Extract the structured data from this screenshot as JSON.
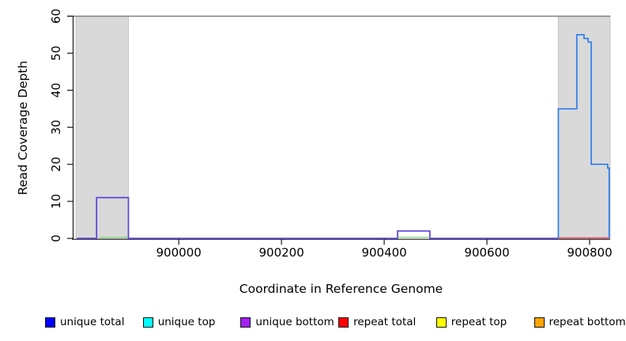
{
  "figure": {
    "xlabel": "Coordinate in Reference Genome",
    "ylabel": "Read Coverage Depth"
  },
  "legend": {
    "items": [
      {
        "label": "unique total",
        "color": "#0000ff"
      },
      {
        "label": "unique top",
        "color": "#00ffff"
      },
      {
        "label": "unique bottom",
        "color": "#a020f0"
      },
      {
        "label": "repeat total",
        "color": "#ff0000"
      },
      {
        "label": "repeat top",
        "color": "#ffff00"
      },
      {
        "label": "repeat bottom",
        "color": "#ffa500"
      }
    ]
  },
  "chart_data": {
    "type": "line",
    "subtype": "step",
    "title": "",
    "xlabel": "Coordinate in Reference Genome",
    "ylabel": "Read Coverage Depth",
    "xlim": [
      899792,
      900840
    ],
    "ylim": [
      0,
      60
    ],
    "xticks": [
      900000,
      900200,
      900400,
      900600,
      900800
    ],
    "yticks": [
      0,
      10,
      20,
      30,
      40,
      50,
      60
    ],
    "grid": false,
    "top_rule_y": 60,
    "top_rule_color": "#7f7f7f",
    "shaded_regions": [
      {
        "x0": 899800,
        "x1": 899902,
        "color": "#d9d9d9"
      },
      {
        "x0": 900739,
        "x1": 900840,
        "color": "#d9d9d9"
      }
    ],
    "series": [
      {
        "name": "unique-coverage-left",
        "color": "#5b44d8",
        "points": [
          [
            899802,
            0
          ],
          [
            899840,
            0
          ],
          [
            899840,
            11
          ],
          [
            899902,
            11
          ],
          [
            899902,
            0
          ],
          [
            900426,
            0
          ],
          [
            900426,
            2
          ],
          [
            900489,
            2
          ],
          [
            900489,
            0
          ],
          [
            900739,
            0
          ]
        ]
      },
      {
        "name": "unique-total-right-peak",
        "color": "#2f7ced",
        "points": [
          [
            900739,
            0
          ],
          [
            900739,
            35
          ],
          [
            900775,
            35
          ],
          [
            900775,
            55
          ],
          [
            900789,
            55
          ],
          [
            900789,
            54
          ],
          [
            900797,
            54
          ],
          [
            900797,
            53
          ],
          [
            900803,
            53
          ],
          [
            900803,
            20
          ],
          [
            900835,
            20
          ],
          [
            900835,
            19
          ],
          [
            900838,
            19
          ],
          [
            900838,
            0
          ]
        ]
      },
      {
        "name": "overlap-segment-left",
        "color": "#8fdc8f",
        "points": [
          [
            899846,
            0
          ],
          [
            899900,
            0
          ]
        ]
      },
      {
        "name": "overlap-segment-middle",
        "color": "#8fdc8f",
        "points": [
          [
            900427,
            0
          ],
          [
            900488,
            0
          ]
        ]
      },
      {
        "name": "repeat-total-baseline",
        "color": "#e8556f",
        "points": [
          [
            900740,
            0
          ],
          [
            900838,
            0
          ]
        ]
      }
    ],
    "legend_position": "bottom"
  }
}
